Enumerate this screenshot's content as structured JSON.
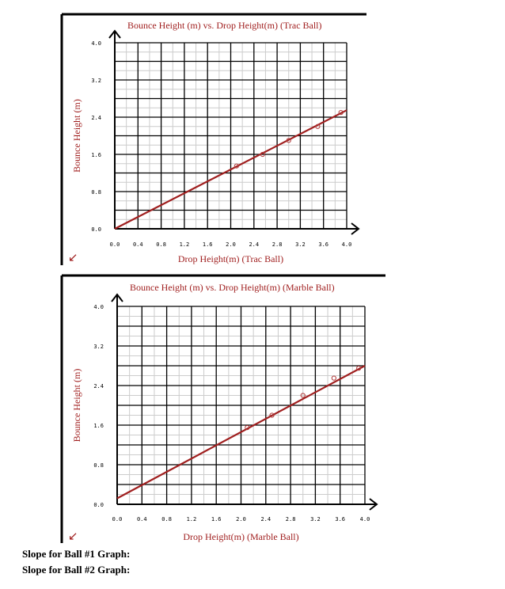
{
  "chart_data": [
    {
      "type": "scatter",
      "title": "Bounce Height (m) vs. Drop Height(m) (Trac Ball)",
      "xlabel": "Drop Height(m) (Trac Ball)",
      "ylabel": "Bounce Height (m)",
      "xlim": [
        0,
        4.0
      ],
      "ylim": [
        0,
        4.0
      ],
      "xticks": [
        "0.0",
        "0.4",
        "0.8",
        "1.2",
        "1.6",
        "2.0",
        "2.4",
        "2.8",
        "3.2",
        "3.6",
        "4.0"
      ],
      "yticks": [
        "0.0",
        "0.8",
        "1.6",
        "2.4",
        "3.2",
        "4.0"
      ],
      "grid": true,
      "series": [
        {
          "points": [
            {
              "x": 2.1,
              "y": 1.35
            },
            {
              "x": 2.55,
              "y": 1.6
            },
            {
              "x": 3.0,
              "y": 1.9
            },
            {
              "x": 3.5,
              "y": 2.2
            },
            {
              "x": 3.9,
              "y": 2.5
            }
          ],
          "color": "#b03a3a"
        }
      ],
      "fit_line": {
        "x": [
          0.0,
          4.0
        ],
        "y": [
          0.0,
          2.55
        ],
        "color": "#a01f1f"
      }
    },
    {
      "type": "scatter",
      "title": "Bounce Height (m) vs. Drop Height(m) (Marble Ball)",
      "xlabel": "Drop Height(m) (Marble Ball)",
      "ylabel": "Bounce Height (m)",
      "xlim": [
        0,
        4.0
      ],
      "ylim": [
        0,
        4.0
      ],
      "xticks": [
        "0.0",
        "0.4",
        "0.8",
        "1.2",
        "1.6",
        "2.0",
        "2.4",
        "2.8",
        "3.2",
        "3.6",
        "4.0"
      ],
      "yticks": [
        "0.0",
        "0.8",
        "1.6",
        "2.4",
        "3.2",
        "4.0"
      ],
      "grid": true,
      "series": [
        {
          "points": [
            {
              "x": 2.1,
              "y": 1.55
            },
            {
              "x": 2.5,
              "y": 1.8
            },
            {
              "x": 3.0,
              "y": 2.2
            },
            {
              "x": 3.5,
              "y": 2.55
            },
            {
              "x": 3.9,
              "y": 2.75
            }
          ],
          "color": "#b03a3a"
        }
      ],
      "fit_line": {
        "x": [
          0.0,
          4.0
        ],
        "y": [
          0.12,
          2.8
        ],
        "color": "#a01f1f"
      }
    }
  ],
  "colors": {
    "title": "#a01f1f",
    "axis": "#000000",
    "grid_major": "#000000",
    "grid_minor": "#cccccc",
    "line": "#a01f1f",
    "marker": "#b03a3a"
  },
  "icons": {
    "corner_arrow": "arrow-down-left-icon"
  },
  "corner_arrow_glyph": "↙",
  "slopes": {
    "ball1_label": "Slope for Ball #1 Graph:",
    "ball2_label": "Slope for Ball #2 Graph:"
  }
}
